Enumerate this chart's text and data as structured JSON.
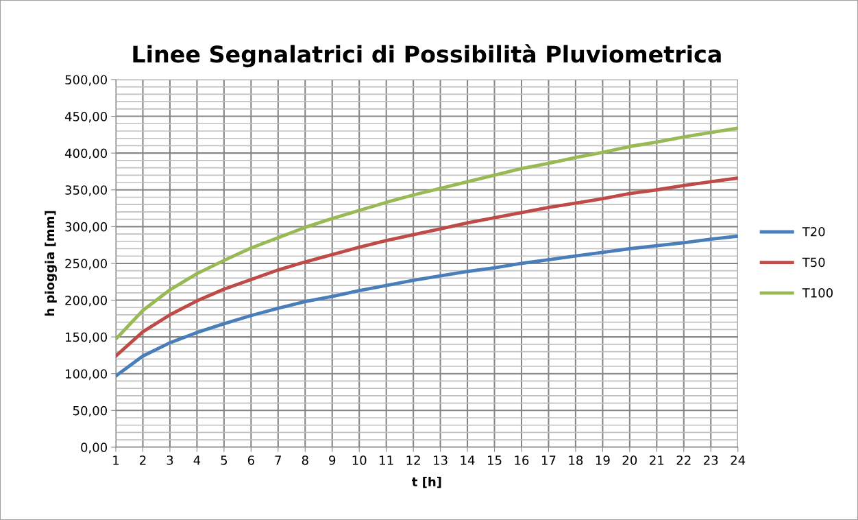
{
  "chart_data": {
    "type": "line",
    "title": "Linee Segnalatrici di Possibilità Pluviometrica",
    "xlabel": "t [h]",
    "ylabel": "h pioggia [mm]",
    "categories": [
      "1",
      "2",
      "3",
      "4",
      "5",
      "6",
      "7",
      "8",
      "9",
      "10",
      "11",
      "12",
      "13",
      "14",
      "15",
      "16",
      "17",
      "18",
      "19",
      "20",
      "21",
      "22",
      "23",
      "24"
    ],
    "series": [
      {
        "name": "T20",
        "color": "#4a7ebb",
        "values": [
          97,
          124,
          142,
          156,
          168,
          179,
          189,
          198,
          205,
          213,
          220,
          227,
          233,
          239,
          244,
          250,
          255,
          260,
          265,
          270,
          274,
          278,
          283,
          287
        ]
      },
      {
        "name": "T50",
        "color": "#be4b48",
        "values": [
          124,
          157,
          180,
          199,
          215,
          228,
          241,
          252,
          262,
          272,
          281,
          289,
          297,
          305,
          312,
          319,
          326,
          332,
          338,
          345,
          350,
          356,
          361,
          366
        ]
      },
      {
        "name": "T100",
        "color": "#98b954",
        "values": [
          147,
          186,
          214,
          236,
          254,
          271,
          285,
          299,
          311,
          322,
          333,
          343,
          352,
          361,
          370,
          379,
          386,
          394,
          401,
          409,
          415,
          422,
          428,
          434
        ]
      }
    ],
    "ylim": [
      0,
      500
    ],
    "yticks": [
      {
        "value": 0,
        "label": "0,00"
      },
      {
        "value": 10,
        "label": null
      },
      {
        "value": 20,
        "label": null
      },
      {
        "value": 30,
        "label": null
      },
      {
        "value": 40,
        "label": null
      },
      {
        "value": 50,
        "label": "50,00"
      },
      {
        "value": 60,
        "label": null
      },
      {
        "value": 70,
        "label": null
      },
      {
        "value": 80,
        "label": null
      },
      {
        "value": 90,
        "label": null
      },
      {
        "value": 100,
        "label": "100,00"
      },
      {
        "value": 110,
        "label": null
      },
      {
        "value": 120,
        "label": null
      },
      {
        "value": 130,
        "label": null
      },
      {
        "value": 140,
        "label": null
      },
      {
        "value": 150,
        "label": "150,00"
      },
      {
        "value": 160,
        "label": null
      },
      {
        "value": 170,
        "label": null
      },
      {
        "value": 180,
        "label": null
      },
      {
        "value": 190,
        "label": null
      },
      {
        "value": 200,
        "label": "200,00"
      },
      {
        "value": 210,
        "label": null
      },
      {
        "value": 220,
        "label": null
      },
      {
        "value": 230,
        "label": null
      },
      {
        "value": 240,
        "label": null
      },
      {
        "value": 250,
        "label": "250,00"
      },
      {
        "value": 260,
        "label": null
      },
      {
        "value": 270,
        "label": null
      },
      {
        "value": 280,
        "label": null
      },
      {
        "value": 290,
        "label": null
      },
      {
        "value": 300,
        "label": "300,00"
      },
      {
        "value": 310,
        "label": null
      },
      {
        "value": 320,
        "label": null
      },
      {
        "value": 330,
        "label": null
      },
      {
        "value": 340,
        "label": null
      },
      {
        "value": 350,
        "label": "350,00"
      },
      {
        "value": 360,
        "label": null
      },
      {
        "value": 370,
        "label": null
      },
      {
        "value": 380,
        "label": null
      },
      {
        "value": 390,
        "label": null
      },
      {
        "value": 400,
        "label": "400,00"
      },
      {
        "value": 410,
        "label": null
      },
      {
        "value": 420,
        "label": null
      },
      {
        "value": 430,
        "label": null
      },
      {
        "value": 440,
        "label": null
      },
      {
        "value": 450,
        "label": "450,00"
      },
      {
        "value": 460,
        "label": null
      },
      {
        "value": 470,
        "label": null
      },
      {
        "value": 480,
        "label": null
      },
      {
        "value": 490,
        "label": null
      },
      {
        "value": 500,
        "label": "500,00"
      }
    ],
    "grid": true,
    "legend": "right",
    "marker": "none",
    "line_style": "solid"
  }
}
